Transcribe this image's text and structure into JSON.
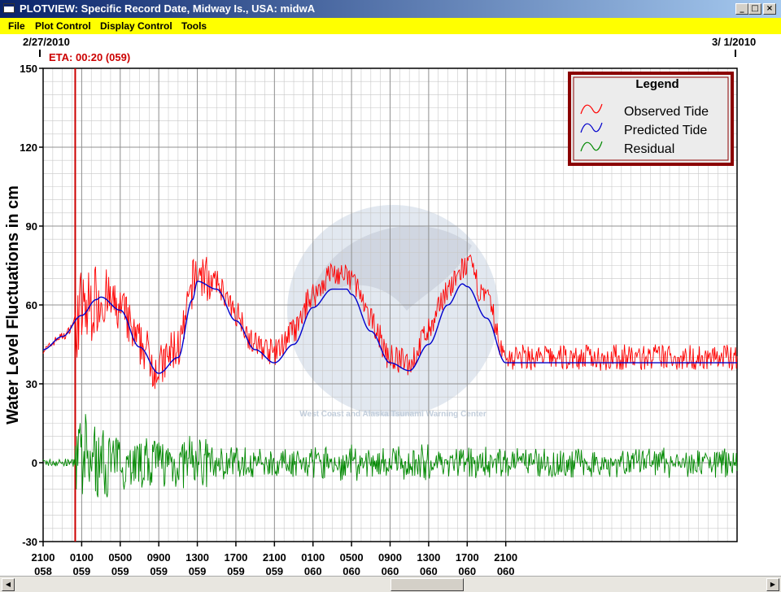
{
  "window": {
    "title": "PLOTVIEW: Specific Record Date, Midway Is., USA: midwA",
    "minimize_glyph": "_",
    "maximize_glyph": "□",
    "close_glyph": "×"
  },
  "menu": {
    "file": "File",
    "plot_control": "Plot Control",
    "display_control": "Display Control",
    "tools": "Tools"
  },
  "header": {
    "start_date": "2/27/2010",
    "end_date": "3/ 1/2010",
    "eta": "ETA: 00:20 (059)"
  },
  "scrollbar": {
    "left_glyph": "◀",
    "right_glyph": "▶"
  },
  "colors": {
    "observed": "#ff0000",
    "predicted": "#0000cc",
    "residual": "#008800",
    "eta_line": "#cc0000",
    "legend_border": "#8b0000",
    "menubar": "#ffff00",
    "titlebar": "#0a246a"
  },
  "watermark_text": "West Coast and Alaska Tsunami Warning Center",
  "chart_data": {
    "type": "line",
    "ylabel": "Water Level Fluctuations in cm",
    "ylim": [
      -30,
      150
    ],
    "yticks": [
      -30,
      0,
      30,
      60,
      90,
      120,
      150
    ],
    "xlim_hours": [
      0,
      72
    ],
    "xticks": [
      {
        "hour": 0,
        "time": "2100",
        "day": "058"
      },
      {
        "hour": 4,
        "time": "0100",
        "day": "059"
      },
      {
        "hour": 8,
        "time": "0500",
        "day": "059"
      },
      {
        "hour": 12,
        "time": "0900",
        "day": "059"
      },
      {
        "hour": 16,
        "time": "1300",
        "day": "059"
      },
      {
        "hour": 20,
        "time": "1700",
        "day": "059"
      },
      {
        "hour": 24,
        "time": "2100",
        "day": "059"
      },
      {
        "hour": 28,
        "time": "0100",
        "day": "060"
      },
      {
        "hour": 32,
        "time": "0500",
        "day": "060"
      },
      {
        "hour": 36,
        "time": "0900",
        "day": "060"
      },
      {
        "hour": 40,
        "time": "1300",
        "day": "060"
      },
      {
        "hour": 44,
        "time": "1700",
        "day": "060"
      },
      {
        "hour": 48,
        "time": "2100",
        "day": "060"
      }
    ],
    "eta_hour": 3.33,
    "legend": {
      "title": "Legend",
      "location": "top-right",
      "entries": [
        "Observed Tide",
        "Predicted Tide",
        "Residual"
      ]
    },
    "series": [
      {
        "name": "Predicted Tide",
        "x": [
          0,
          2,
          4,
          5.5,
          6,
          8,
          10,
          12,
          14,
          15.5,
          16,
          18,
          20,
          22,
          24,
          26,
          28,
          30,
          31.5,
          32,
          34,
          36,
          38,
          40,
          42,
          43.5,
          44,
          46,
          48
        ],
        "y": [
          43,
          48,
          56,
          62,
          63,
          58,
          44,
          34,
          40,
          62,
          69,
          66,
          54,
          43,
          38,
          45,
          59,
          66,
          66,
          64,
          50,
          38,
          35,
          45,
          60,
          68,
          67,
          55,
          38
        ]
      },
      {
        "name": "Observed Tide",
        "x": [
          0,
          2,
          4,
          6,
          8,
          10,
          12,
          14,
          16,
          18,
          20,
          22,
          24,
          26,
          28,
          30,
          32,
          34,
          36,
          38,
          40,
          42,
          44,
          46,
          48
        ],
        "y": [
          43,
          48,
          57,
          63,
          58,
          45,
          36,
          44,
          72,
          68,
          57,
          45,
          42,
          50,
          64,
          72,
          70,
          54,
          40,
          38,
          50,
          66,
          75,
          62,
          40
        ]
      },
      {
        "name": "Residual",
        "x": [
          0,
          3.33,
          4,
          6,
          8,
          12,
          16,
          20,
          24,
          28,
          32,
          36,
          40,
          44,
          48
        ],
        "y": [
          0,
          0,
          8,
          5,
          3,
          2,
          4,
          3,
          1,
          3,
          5,
          3,
          6,
          4,
          2
        ]
      }
    ]
  }
}
